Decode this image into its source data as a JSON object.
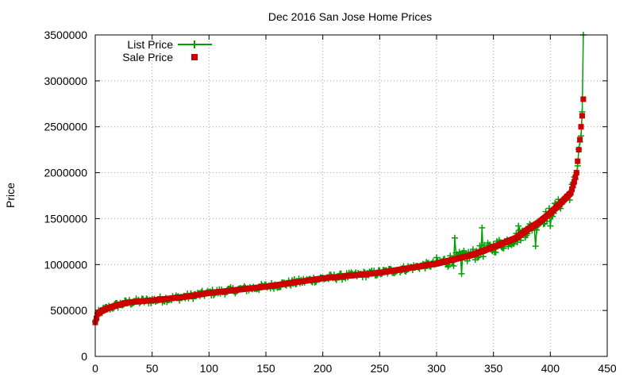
{
  "chart_data": {
    "type": "scatter",
    "title": "Dec 2016 San Jose Home Prices",
    "xlabel": "",
    "ylabel": "Price",
    "xlim": [
      0,
      450
    ],
    "ylim": [
      0,
      3500000
    ],
    "x_ticks": [
      0,
      50,
      100,
      150,
      200,
      250,
      300,
      350,
      400,
      450
    ],
    "y_ticks": [
      0,
      500000,
      1000000,
      1500000,
      2000000,
      2500000,
      3000000,
      3500000
    ],
    "grid": true,
    "legend_position": "top-left",
    "n_points": 430,
    "series": [
      {
        "name": "Sale Price",
        "style": "points",
        "marker": "square",
        "color": "#cc0000",
        "x_sorted_by_value": true,
        "knots": [
          [
            0,
            370000
          ],
          [
            2,
            460000
          ],
          [
            5,
            490000
          ],
          [
            10,
            520000
          ],
          [
            20,
            560000
          ],
          [
            30,
            590000
          ],
          [
            50,
            610000
          ],
          [
            80,
            650000
          ],
          [
            100,
            690000
          ],
          [
            150,
            760000
          ],
          [
            200,
            850000
          ],
          [
            250,
            910000
          ],
          [
            300,
            1010000
          ],
          [
            330,
            1100000
          ],
          [
            350,
            1190000
          ],
          [
            360,
            1240000
          ],
          [
            370,
            1290000
          ],
          [
            380,
            1380000
          ],
          [
            390,
            1460000
          ],
          [
            400,
            1560000
          ],
          [
            410,
            1680000
          ],
          [
            418,
            1780000
          ],
          [
            421,
            1900000
          ],
          [
            423,
            2000000
          ],
          [
            425,
            2250000
          ],
          [
            426,
            2360000
          ],
          [
            427,
            2500000
          ],
          [
            428,
            2620000
          ],
          [
            429,
            2800000
          ]
        ]
      },
      {
        "name": "List Price",
        "style": "linespoints",
        "marker": "plus",
        "color": "#00a000",
        "description": "list price scattered around sale price",
        "notable_points": [
          [
            316,
            1290000
          ],
          [
            322,
            900000
          ],
          [
            340,
            1400000
          ],
          [
            372,
            1420000
          ],
          [
            387,
            1200000
          ],
          [
            400,
            1420000
          ],
          [
            427,
            2400000
          ],
          [
            429,
            3500000
          ]
        ]
      }
    ]
  }
}
